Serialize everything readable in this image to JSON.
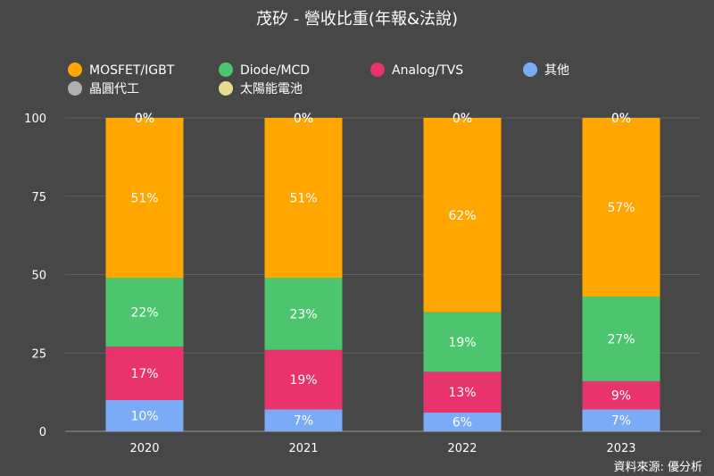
{
  "source": "資料來源: 優分析",
  "colors": {
    "background": "#474747",
    "grid": "#606060",
    "text": "#ffffff"
  },
  "chart_data": {
    "type": "bar",
    "stacked": true,
    "title": "茂矽 - 營收比重(年報&法說)",
    "xlabel": "",
    "ylabel": "",
    "ylim": [
      0,
      100
    ],
    "yticks": [
      0,
      25,
      50,
      75,
      100
    ],
    "grid": true,
    "legend_position": "top",
    "categories": [
      "2020",
      "2021",
      "2022",
      "2023"
    ],
    "series": [
      {
        "name": "其他",
        "color": "#7baaf7",
        "values": [
          10,
          7,
          6,
          7
        ]
      },
      {
        "name": "Analog/TVS",
        "color": "#e8336d",
        "values": [
          17,
          19,
          13,
          9
        ]
      },
      {
        "name": "Diode/MCD",
        "color": "#4dc56f",
        "values": [
          22,
          23,
          19,
          27
        ]
      },
      {
        "name": "MOSFET/IGBT",
        "color": "#ffa600",
        "values": [
          51,
          51,
          62,
          57
        ]
      },
      {
        "name": "晶圓代工",
        "color": "#b0b0b0",
        "values": [
          0,
          0,
          0,
          0
        ]
      },
      {
        "name": "太陽能電池",
        "color": "#e8dd8a",
        "values": [
          0,
          0,
          0,
          0
        ]
      }
    ],
    "data_labels_unit": "%"
  },
  "legend_order": [
    "MOSFET/IGBT",
    "Diode/MCD",
    "Analog/TVS",
    "其他",
    "晶圓代工",
    "太陽能電池"
  ]
}
